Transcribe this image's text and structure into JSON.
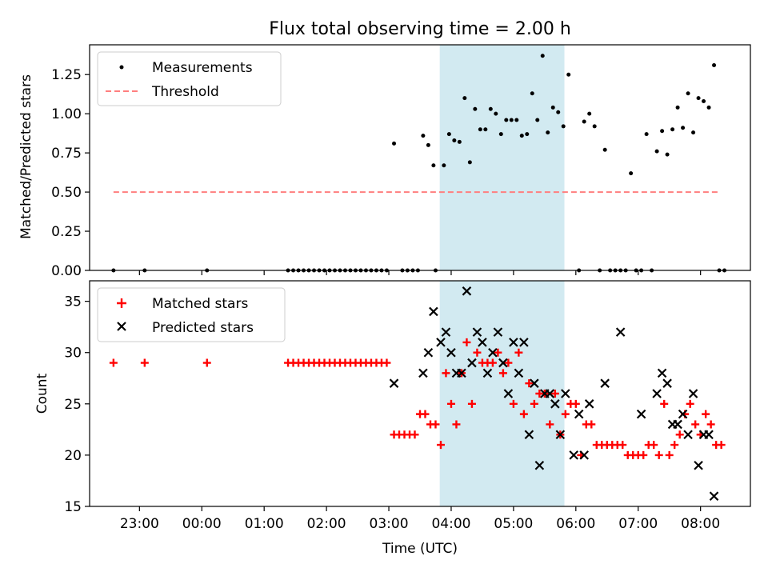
{
  "figure": {
    "title": "Flux total observing time = 2.00 h",
    "xlabel": "Time (UTC)",
    "xticks": [
      "23:00",
      "00:00",
      "01:00",
      "02:00",
      "03:00",
      "04:00",
      "05:00",
      "06:00",
      "07:00",
      "08:00"
    ],
    "highlight_window": {
      "start": "03:49",
      "end": "05:49",
      "color": "#add8e6"
    }
  },
  "chart_data": [
    {
      "type": "scatter",
      "title": "Flux total observing time = 2.00 h",
      "ylabel": "Matched/Predicted stars",
      "xlabel": "",
      "ylim": [
        0,
        1.44
      ],
      "yticks": [
        "0.00",
        "0.25",
        "0.50",
        "0.75",
        "1.00",
        "1.25"
      ],
      "legend": "top-left",
      "grid": false,
      "series": [
        {
          "name": "Measurements",
          "kind": "points",
          "color": "#000000",
          "x": [
            "22:35",
            "23:05",
            "00:05",
            "01:23",
            "01:28",
            "01:33",
            "01:38",
            "01:43",
            "01:48",
            "01:53",
            "01:58",
            "02:03",
            "02:08",
            "02:13",
            "02:18",
            "02:23",
            "02:28",
            "02:33",
            "02:38",
            "02:43",
            "02:48",
            "02:53",
            "02:58",
            "03:13",
            "03:18",
            "03:23",
            "03:28",
            "03:45",
            "03:05",
            "03:33",
            "03:38",
            "03:43",
            "03:53",
            "03:58",
            "04:03",
            "04:08",
            "04:13",
            "04:18",
            "04:23",
            "04:28",
            "04:33",
            "04:38",
            "04:43",
            "04:48",
            "04:53",
            "04:58",
            "05:03",
            "05:08",
            "05:13",
            "05:18",
            "05:23",
            "05:28",
            "05:33",
            "05:38",
            "05:43",
            "05:48",
            "05:53",
            "06:03",
            "06:08",
            "06:13",
            "06:18",
            "06:23",
            "06:28",
            "06:33",
            "06:38",
            "06:43",
            "06:48",
            "06:53",
            "06:58",
            "07:03",
            "07:08",
            "07:13",
            "07:18",
            "07:23",
            "07:28",
            "07:33",
            "07:38",
            "07:43",
            "07:48",
            "07:53",
            "07:58",
            "08:03",
            "08:08",
            "08:13",
            "08:18",
            "08:23"
          ],
          "y": [
            0,
            0,
            0,
            0,
            0,
            0,
            0,
            0,
            0,
            0,
            0,
            0,
            0,
            0,
            0,
            0,
            0,
            0,
            0,
            0,
            0,
            0,
            0,
            0,
            0,
            0,
            0,
            0,
            0.81,
            0.86,
            0.8,
            0.67,
            0.67,
            0.87,
            0.83,
            0.82,
            1.1,
            0.69,
            1.03,
            0.9,
            0.9,
            1.03,
            1.0,
            0.87,
            0.96,
            0.96,
            0.96,
            0.86,
            0.87,
            1.13,
            0.96,
            1.37,
            0.88,
            1.04,
            1.01,
            0.92,
            1.25,
            0,
            0.95,
            1.0,
            0.92,
            0,
            0.77,
            0,
            0,
            0,
            0,
            0.62,
            0,
            0,
            0.87,
            0,
            0.76,
            0.89,
            0.74,
            0.9,
            1.04,
            0.91,
            1.13,
            0.88,
            1.1,
            1.08,
            1.04,
            1.31,
            0,
            0
          ]
        },
        {
          "name": "Threshold",
          "kind": "dashed-line",
          "color": "#ff7f7f",
          "x": [
            "22:35",
            "08:18"
          ],
          "y": [
            0.5,
            0.5
          ]
        }
      ]
    },
    {
      "type": "scatter",
      "title": "",
      "ylabel": "Count",
      "xlabel": "Time (UTC)",
      "ylim": [
        15,
        37
      ],
      "yticks": [
        "15",
        "20",
        "25",
        "30",
        "35"
      ],
      "legend": "top-left",
      "grid": false,
      "series": [
        {
          "name": "Matched stars",
          "kind": "plus",
          "color": "#ff0000",
          "x": [
            "22:35",
            "23:05",
            "00:05",
            "01:23",
            "01:28",
            "01:33",
            "01:38",
            "01:43",
            "01:48",
            "01:53",
            "01:58",
            "02:03",
            "02:08",
            "02:13",
            "02:18",
            "02:23",
            "02:28",
            "02:33",
            "02:38",
            "02:43",
            "02:48",
            "02:53",
            "02:58",
            "03:05",
            "03:10",
            "03:15",
            "03:20",
            "03:25",
            "03:30",
            "03:35",
            "03:40",
            "03:45",
            "03:50",
            "03:55",
            "04:00",
            "04:05",
            "04:10",
            "04:15",
            "04:20",
            "04:25",
            "04:30",
            "04:35",
            "04:40",
            "04:45",
            "04:50",
            "04:55",
            "05:00",
            "05:05",
            "05:10",
            "05:15",
            "05:20",
            "05:25",
            "05:30",
            "05:35",
            "05:40",
            "05:45",
            "05:50",
            "05:55",
            "06:00",
            "06:05",
            "06:10",
            "06:15",
            "06:20",
            "06:25",
            "06:30",
            "06:35",
            "06:40",
            "06:45",
            "06:50",
            "06:55",
            "07:00",
            "07:05",
            "07:10",
            "07:15",
            "07:20",
            "07:25",
            "07:30",
            "07:35",
            "07:40",
            "07:45",
            "07:50",
            "07:55",
            "08:00",
            "08:05",
            "08:10",
            "08:15",
            "08:20"
          ],
          "y": [
            29,
            29,
            29,
            29,
            29,
            29,
            29,
            29,
            29,
            29,
            29,
            29,
            29,
            29,
            29,
            29,
            29,
            29,
            29,
            29,
            29,
            29,
            29,
            22,
            22,
            22,
            22,
            22,
            24,
            24,
            23,
            23,
            21,
            28,
            25,
            23,
            28,
            31,
            25,
            30,
            29,
            29,
            29,
            30,
            28,
            29,
            25,
            30,
            24,
            27,
            25,
            26,
            26,
            23,
            26,
            22,
            24,
            25,
            25,
            20,
            23,
            23,
            21,
            21,
            21,
            21,
            21,
            21,
            20,
            20,
            20,
            20,
            21,
            21,
            20,
            25,
            20,
            21,
            22,
            24,
            25,
            23,
            22,
            24,
            23,
            21,
            21
          ]
        },
        {
          "name": "Predicted stars",
          "kind": "cross",
          "color": "#000000",
          "x": [
            "03:05",
            "03:33",
            "03:38",
            "03:43",
            "03:50",
            "03:55",
            "04:00",
            "04:05",
            "04:10",
            "04:15",
            "04:20",
            "04:25",
            "04:30",
            "04:35",
            "04:40",
            "04:45",
            "04:50",
            "04:55",
            "05:00",
            "05:05",
            "05:10",
            "05:15",
            "05:20",
            "05:25",
            "05:30",
            "05:35",
            "05:40",
            "05:45",
            "05:50",
            "05:58",
            "06:03",
            "06:08",
            "06:13",
            "06:28",
            "06:43",
            "07:03",
            "07:18",
            "07:23",
            "07:28",
            "07:33",
            "07:38",
            "07:43",
            "07:48",
            "07:53",
            "07:58",
            "08:03",
            "08:08",
            "08:13"
          ],
          "y": [
            27,
            28,
            30,
            34,
            31,
            32,
            30,
            28,
            28,
            36,
            29,
            32,
            31,
            28,
            30,
            32,
            29,
            26,
            31,
            28,
            31,
            22,
            27,
            19,
            26,
            26,
            25,
            22,
            26,
            20,
            24,
            20,
            25,
            27,
            32,
            24,
            26,
            28,
            27,
            23,
            23,
            24,
            22,
            26,
            19,
            22,
            22,
            16
          ]
        }
      ]
    }
  ]
}
